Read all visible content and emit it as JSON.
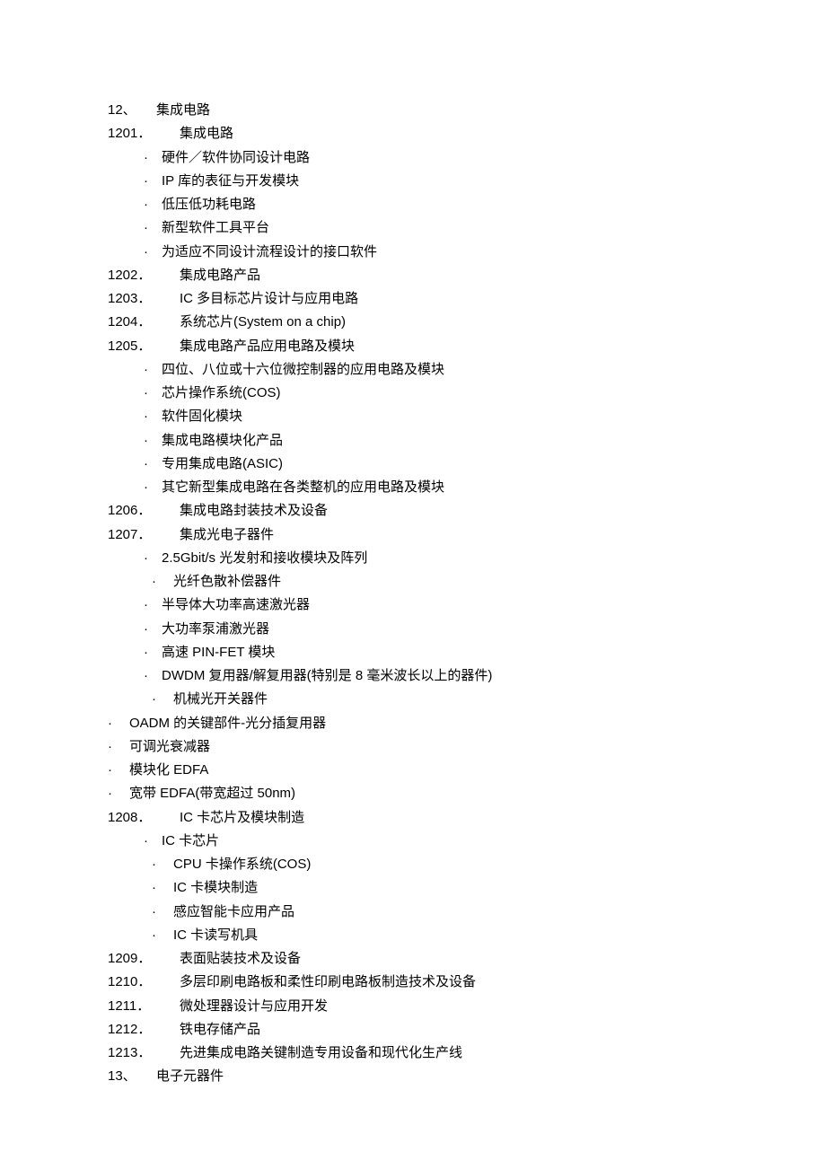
{
  "section12": {
    "num": "12、",
    "title": "集成电路"
  },
  "item1201": {
    "num": "1201．",
    "title": "集成电路"
  },
  "sub1201": [
    "硬件／软件协同设计电路",
    "IP 库的表征与开发模块",
    "低压低功耗电路",
    "新型软件工具平台",
    "为适应不同设计流程设计的接口软件"
  ],
  "item1202": {
    "num": "1202．",
    "title": "集成电路产品"
  },
  "item1203": {
    "num": "1203．",
    "title": "IC 多目标芯片设计与应用电路"
  },
  "item1204": {
    "num": "1204．",
    "title": "系统芯片(System on a chip)"
  },
  "item1205": {
    "num": "1205．",
    "title": "集成电路产品应用电路及模块"
  },
  "sub1205": [
    "四位、八位或十六位微控制器的应用电路及模块",
    "芯片操作系统(COS)",
    "软件固化模块",
    "集成电路模块化产品",
    "专用集成电路(ASIC)",
    "其它新型集成电路在各类整机的应用电路及模块"
  ],
  "item1206": {
    "num": "1206．",
    "title": "集成电路封装技术及设备"
  },
  "item1207": {
    "num": "1207．",
    "title": "集成光电子器件"
  },
  "sub1207a": [
    "2.5Gbit/s 光发射和接收模块及阵列"
  ],
  "sub1207alt": [
    "光纤色散补偿器件"
  ],
  "sub1207b": [
    "半导体大功率高速激光器",
    "大功率泵浦激光器",
    "高速 PIN-FET 模块",
    "DWDM 复用器/解复用器(特别是 8 毫米波长以上的器件)"
  ],
  "sub1207alt2": [
    "机械光开关器件"
  ],
  "sub1207zero": [
    "OADM 的关键部件-光分插复用器",
    "可调光衰减器",
    "模块化 EDFA",
    "宽带 EDFA(带宽超过 50nm)"
  ],
  "item1208": {
    "num": "1208．",
    "title": "IC 卡芯片及模块制造"
  },
  "sub1208a": [
    "IC 卡芯片"
  ],
  "sub1208b": [
    "CPU 卡操作系统(COS)",
    "IC 卡模块制造",
    "感应智能卡应用产品",
    "IC 卡读写机具"
  ],
  "item1209": {
    "num": "1209．",
    "title": "表面贴装技术及设备"
  },
  "item1210": {
    "num": "1210．",
    "title": "多层印刷电路板和柔性印刷电路板制造技术及设备"
  },
  "item1211": {
    "num": "1211．",
    "title": "微处理器设计与应用开发"
  },
  "item1212": {
    "num": "1212．",
    "title": "铁电存储产品"
  },
  "item1213": {
    "num": "1213．",
    "title": "先进集成电路关键制造专用设备和现代化生产线"
  },
  "section13": {
    "num": "13、",
    "title": "电子元器件"
  },
  "bullet": "·"
}
